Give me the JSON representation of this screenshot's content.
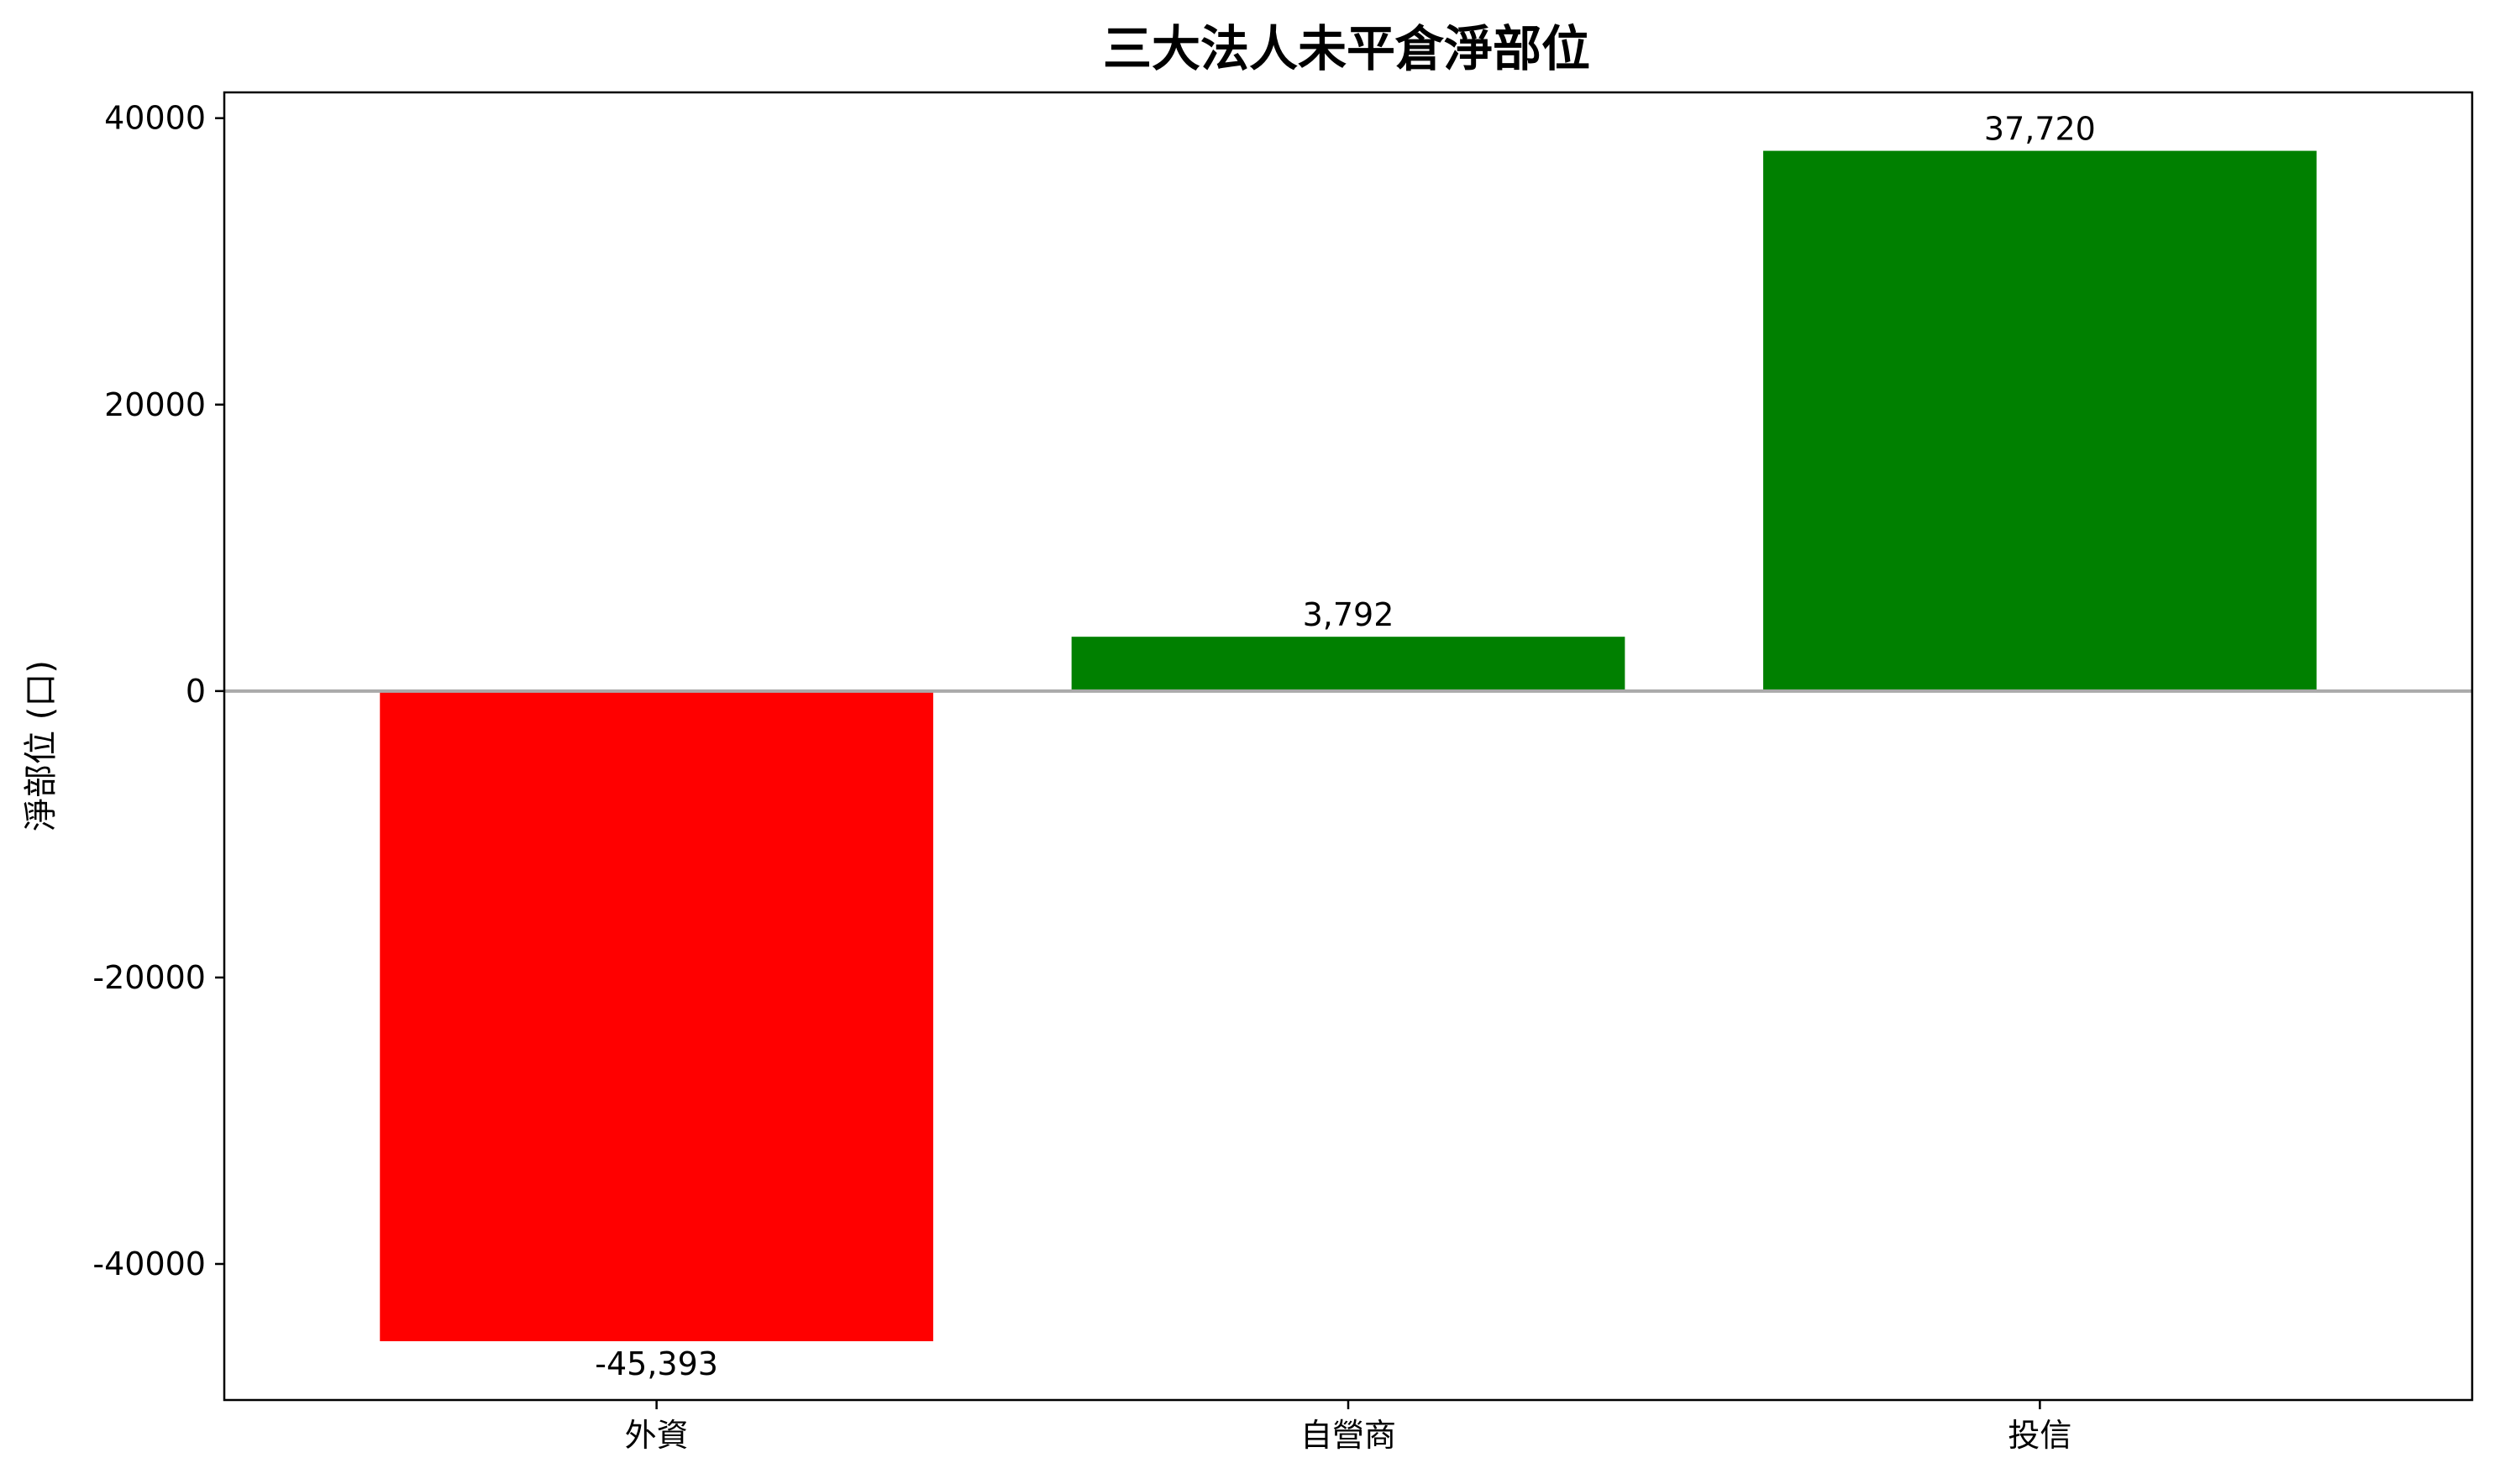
{
  "chart_data": {
    "type": "bar",
    "title": "三大法人未平倉淨部位",
    "xlabel": "",
    "ylabel": "淨部位 (口)",
    "categories": [
      "外資",
      "自營商",
      "投信"
    ],
    "values": [
      -45393,
      3792,
      37720
    ],
    "value_labels": [
      "-45,393",
      "3,792",
      "37,720"
    ],
    "colors": [
      "#ff0000",
      "#008000",
      "#008000"
    ],
    "ylim": [
      -49500,
      41800
    ],
    "yticks": [
      -40000,
      -20000,
      0,
      20000,
      40000
    ],
    "ytick_labels": [
      "-40000",
      "-20000",
      "0",
      "20000",
      "40000"
    ],
    "zero_line_color": "#aaaaaa",
    "grid": false,
    "legend": "none"
  }
}
